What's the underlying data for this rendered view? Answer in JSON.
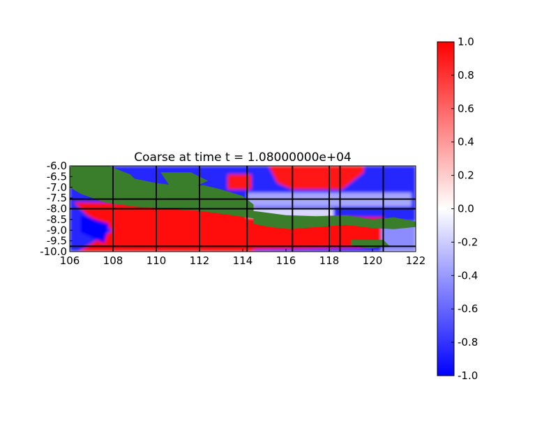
{
  "chart_data": {
    "type": "heatmap",
    "title": "Coarse at time t = 1.08000000e+04",
    "xlabel": "",
    "ylabel": "",
    "xlim": [
      106,
      122
    ],
    "ylim": [
      -10.0,
      -6.0
    ],
    "x_ticks": [
      "106",
      "108",
      "110",
      "112",
      "114",
      "116",
      "118",
      "120",
      "122"
    ],
    "y_ticks": [
      "-6.0",
      "-6.5",
      "-7.0",
      "-7.5",
      "-8.0",
      "-8.5",
      "-9.0",
      "-9.5",
      "-10.0"
    ],
    "colorbar": {
      "range": [
        -1.0,
        1.0
      ],
      "ticks": [
        "1.0",
        "0.8",
        "0.6",
        "0.4",
        "0.2",
        "0.0",
        "-0.2",
        "-0.4",
        "-0.6",
        "-0.8",
        "-1.0"
      ],
      "colormap": "bwr",
      "colors": {
        "low": "#0000ff",
        "mid": "#ffffff",
        "high": "#ff0000"
      }
    },
    "land_color": "#3a7d2b",
    "grid_lines": {
      "x": [
        108,
        110,
        112,
        114.2,
        116.3,
        118.0,
        118.5,
        120.5
      ],
      "y": [
        -7.55,
        -8.0,
        -9.75
      ]
    },
    "regions": [
      {
        "kind": "value",
        "value": -0.85,
        "poly": [
          [
            106,
            -6
          ],
          [
            122,
            -6
          ],
          [
            122,
            -10
          ],
          [
            106,
            -10
          ]
        ]
      },
      {
        "kind": "value",
        "value": 0.95,
        "poly": [
          [
            106.2,
            -7.7
          ],
          [
            114.5,
            -7.75
          ],
          [
            114.5,
            -10
          ],
          [
            106.4,
            -10
          ],
          [
            108,
            -9.0
          ],
          [
            107.3,
            -8.6
          ],
          [
            106.8,
            -8.3
          ]
        ]
      },
      {
        "kind": "value",
        "value": 0.95,
        "poly": [
          [
            114.5,
            -8.4
          ],
          [
            120.5,
            -8.4
          ],
          [
            120.6,
            -9.6
          ],
          [
            119.5,
            -9.8
          ],
          [
            114.5,
            -9.9
          ]
        ]
      },
      {
        "kind": "value",
        "value": -0.35,
        "poly": [
          [
            114.2,
            -7.25
          ],
          [
            121.8,
            -7.25
          ],
          [
            121.8,
            -7.9
          ],
          [
            114.2,
            -7.9
          ]
        ]
      },
      {
        "kind": "value",
        "value": -0.15,
        "poly": [
          [
            114.2,
            -8.0
          ],
          [
            118.2,
            -8.0
          ],
          [
            118.2,
            -8.4
          ],
          [
            114.2,
            -8.4
          ]
        ]
      },
      {
        "kind": "value",
        "value": 0.9,
        "poly": [
          [
            115.2,
            -6.0
          ],
          [
            119.6,
            -6.0
          ],
          [
            119.6,
            -6.3
          ],
          [
            118.6,
            -7.1
          ],
          [
            116.3,
            -7.1
          ],
          [
            115.6,
            -6.8
          ]
        ]
      },
      {
        "kind": "value",
        "value": 0.9,
        "poly": [
          [
            113.3,
            -6.4
          ],
          [
            114.4,
            -6.4
          ],
          [
            114.4,
            -7.1
          ],
          [
            113.3,
            -7.1
          ]
        ]
      },
      {
        "kind": "value",
        "value": -0.45,
        "poly": [
          [
            120.4,
            -8.6
          ],
          [
            122,
            -8.6
          ],
          [
            122,
            -10
          ],
          [
            120.4,
            -10
          ]
        ]
      },
      {
        "kind": "value",
        "value": -1.0,
        "poly": [
          [
            106.5,
            -8.3
          ],
          [
            107.8,
            -8.7
          ],
          [
            107.6,
            -9.6
          ],
          [
            106.5,
            -9.1
          ]
        ]
      },
      {
        "kind": "land",
        "value": 0,
        "poly": [
          [
            106.1,
            -6.0
          ],
          [
            107.2,
            -6.2
          ],
          [
            108.2,
            -6.5
          ],
          [
            109.0,
            -6.6
          ],
          [
            110.0,
            -6.8
          ],
          [
            111.2,
            -6.95
          ],
          [
            112.2,
            -6.9
          ],
          [
            113.0,
            -7.1
          ],
          [
            114.0,
            -7.4
          ],
          [
            114.5,
            -7.8
          ],
          [
            114.5,
            -8.45
          ],
          [
            113.5,
            -8.3
          ],
          [
            112.0,
            -8.1
          ],
          [
            110.5,
            -8.0
          ],
          [
            109.0,
            -7.9
          ],
          [
            107.6,
            -7.7
          ],
          [
            106.5,
            -7.3
          ],
          [
            106.0,
            -7.0
          ],
          [
            106.0,
            -6.1
          ]
        ]
      },
      {
        "kind": "land",
        "value": 0,
        "poly": [
          [
            106.2,
            -6.0
          ],
          [
            107.8,
            -6.0
          ],
          [
            108.8,
            -6.4
          ],
          [
            109.4,
            -7.0
          ],
          [
            108.4,
            -7.1
          ],
          [
            107.3,
            -6.8
          ],
          [
            106.4,
            -6.6
          ]
        ]
      },
      {
        "kind": "land",
        "value": 0,
        "poly": [
          [
            110.2,
            -6.3
          ],
          [
            111.6,
            -6.3
          ],
          [
            112.4,
            -6.7
          ],
          [
            111.7,
            -7.0
          ],
          [
            110.6,
            -6.9
          ]
        ]
      },
      {
        "kind": "land",
        "value": 0,
        "poly": [
          [
            114.5,
            -8.1
          ],
          [
            116.0,
            -8.3
          ],
          [
            117.4,
            -8.35
          ],
          [
            118.8,
            -8.3
          ],
          [
            120.0,
            -8.5
          ],
          [
            121.0,
            -8.4
          ],
          [
            122,
            -8.6
          ],
          [
            122,
            -8.85
          ],
          [
            121.0,
            -8.95
          ],
          [
            120.0,
            -8.9
          ],
          [
            118.8,
            -8.75
          ],
          [
            117.5,
            -8.85
          ],
          [
            116.2,
            -8.95
          ],
          [
            115.2,
            -8.85
          ],
          [
            114.5,
            -8.7
          ]
        ]
      },
      {
        "kind": "land",
        "value": 0,
        "poly": [
          [
            119.0,
            -9.45
          ],
          [
            120.5,
            -9.45
          ],
          [
            120.8,
            -9.75
          ],
          [
            119.8,
            -9.85
          ],
          [
            119.0,
            -9.7
          ]
        ]
      }
    ]
  }
}
